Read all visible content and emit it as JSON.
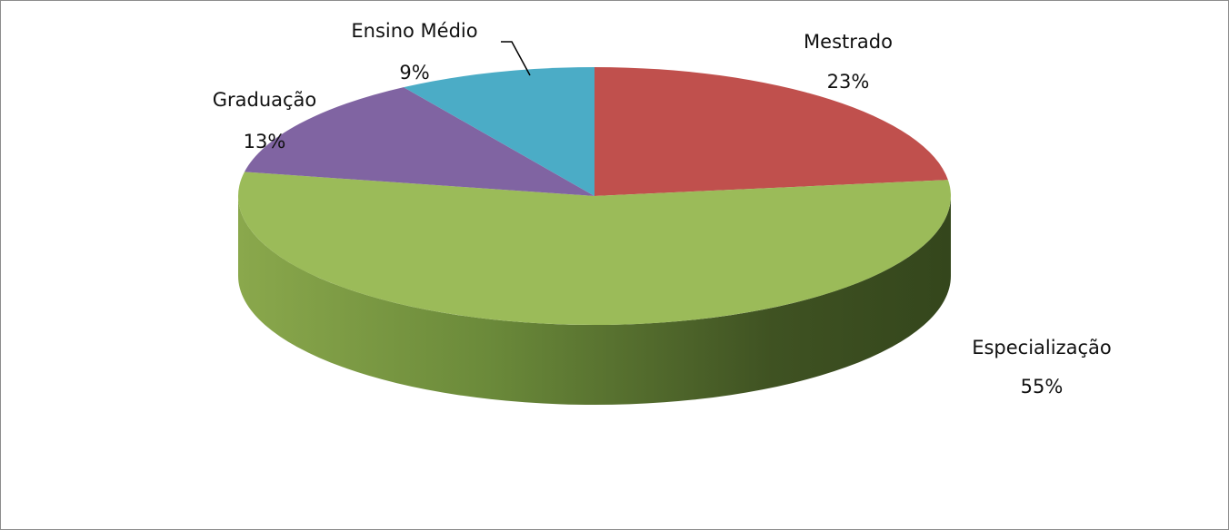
{
  "chart_data": {
    "type": "pie",
    "title": "",
    "categories": [
      "Mestrado",
      "Especialização",
      "Graduação",
      "Ensino Médio"
    ],
    "values": [
      23,
      55,
      13,
      9
    ],
    "labels": [
      "23%",
      "55%",
      "13%",
      "9%"
    ],
    "colors": [
      "#C0504D",
      "#9BBB59",
      "#8064A2",
      "#4BACC6"
    ],
    "side_colors": [
      "#8A3330",
      "#6B8A3A",
      "#5C447A",
      "#2F7F96"
    ],
    "style": "3d",
    "legend": "none"
  }
}
